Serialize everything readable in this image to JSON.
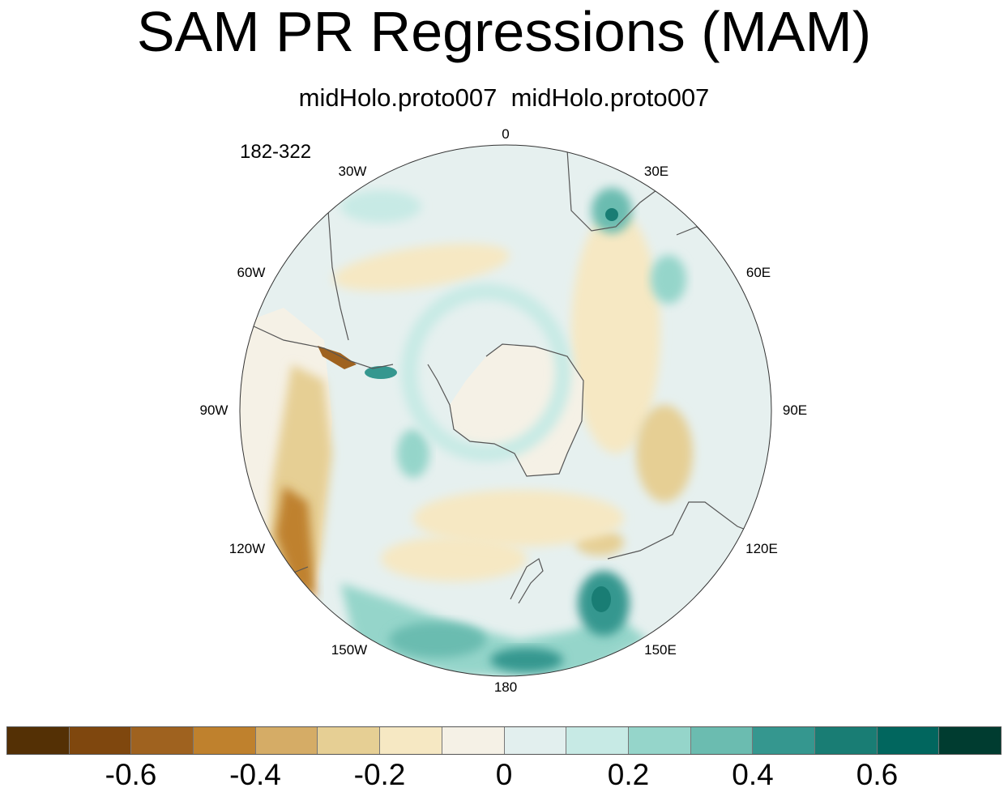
{
  "title": "SAM PR Regressions (MAM)",
  "subtitle": "midHolo.proto007  midHolo.proto007",
  "years_label": "182-322",
  "longitude_labels": {
    "lon_0": "0",
    "lon_30e": "30E",
    "lon_60e": "60E",
    "lon_90e": "90E",
    "lon_120e": "120E",
    "lon_150e": "150E",
    "lon_180": "180",
    "lon_150w": "150W",
    "lon_120w": "120W",
    "lon_90w": "90W",
    "lon_60w": "60W",
    "lon_30w": "30W"
  },
  "colorbar": {
    "colors": [
      "#543005",
      "#7f470e",
      "#9f621f",
      "#bf812d",
      "#d5ac66",
      "#e6cf94",
      "#f6e8c3",
      "#f5f1e6",
      "#e2efee",
      "#c7eae5",
      "#95d5ca",
      "#6bbcb0",
      "#35978f",
      "#197d74",
      "#01665e",
      "#003c30"
    ],
    "tick_labels": [
      "-0.6",
      "-0.4",
      "-0.2",
      "0",
      "0.2",
      "0.4",
      "0.6"
    ]
  },
  "map_colors": {
    "ocean_base": "#e6f0ef",
    "land_base": "#f5f1e6",
    "coast": "#555555"
  }
}
